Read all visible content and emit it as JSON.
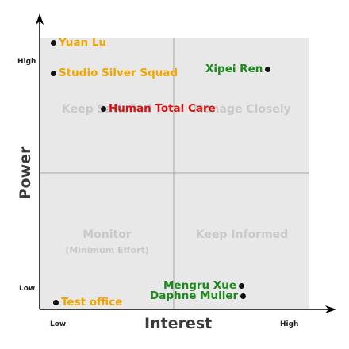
{
  "axes": {
    "x_title": "Interest",
    "y_title": "Power",
    "x_low": "Low",
    "x_high": "High",
    "y_low": "Low",
    "y_high": "High"
  },
  "quadrants": {
    "top_left": "Keep Satisfied",
    "top_right": "Manage Closely",
    "bottom_left": "Monitor",
    "bottom_left_sub": "(Minimum Effort)",
    "bottom_right": "Keep Informed"
  },
  "stakeholders": [
    {
      "label": "Yuan Lu",
      "color": "#f0a500"
    },
    {
      "label": "Studio Silver Squad",
      "color": "#f0a500"
    },
    {
      "label": "Xipei Ren",
      "color": "#1b8a1b"
    },
    {
      "label": "Human Total Care",
      "color": "#e01010"
    },
    {
      "label": "Mengru Xue",
      "color": "#1b8a1b"
    },
    {
      "label": "Daphne Muller",
      "color": "#1b8a1b"
    },
    {
      "label": "Test office",
      "color": "#f0a500"
    }
  ],
  "colors": {
    "panel": "#e8e8e8",
    "divider": "#a8a8a8",
    "axis": "#000000"
  }
}
